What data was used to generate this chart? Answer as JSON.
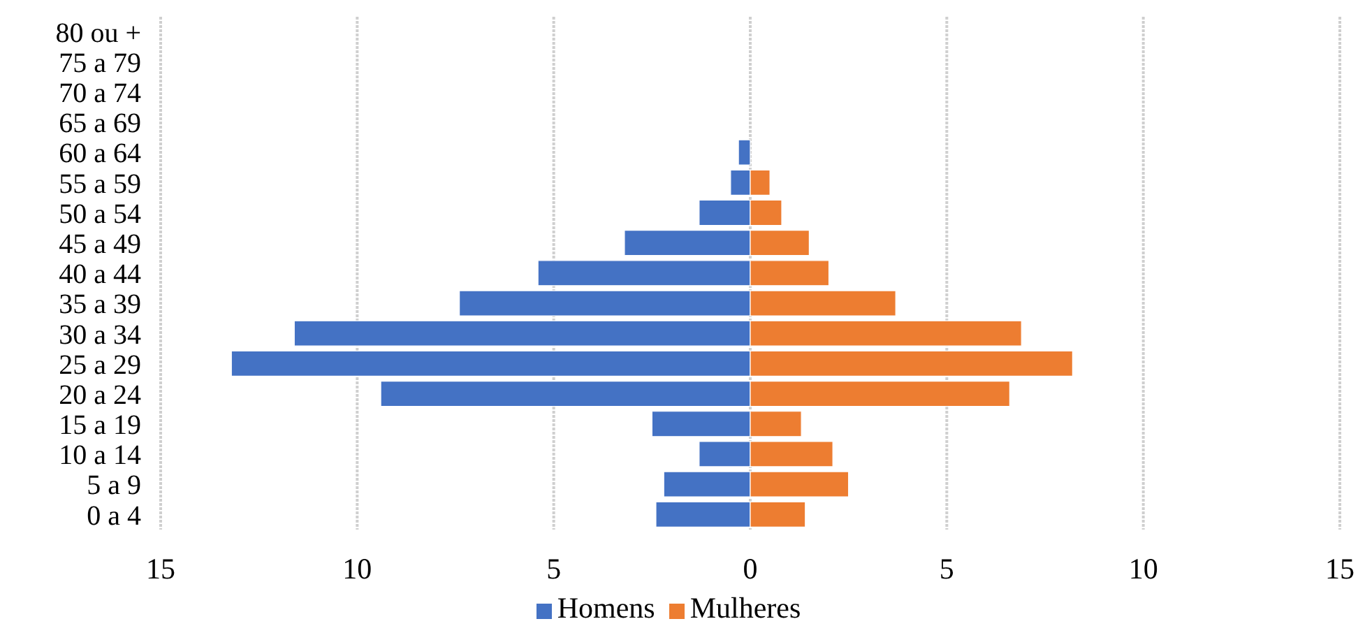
{
  "chart_data": {
    "type": "bar",
    "orientation": "horizontal",
    "stacked": true,
    "categories": [
      "80 ou +",
      "75 a 79",
      "70 a 74",
      "65 a 69",
      "60 a 64",
      "55 a 59",
      "50 a 54",
      "45 a 49",
      "40 a 44",
      "35 a 39",
      "30 a 34",
      "25 a 29",
      "20 a 24",
      "15 a 19",
      "10 a 14",
      "5 a 9",
      "0 a 4"
    ],
    "series": [
      {
        "name": "Homens",
        "color": "#4472c4",
        "values": [
          0,
          0,
          0,
          0,
          -0.3,
          -0.5,
          -1.3,
          -3.2,
          -5.4,
          -7.4,
          -11.6,
          -13.2,
          -9.4,
          -2.5,
          -1.3,
          -2.2,
          -2.4
        ]
      },
      {
        "name": "Mulheres",
        "color": "#ed7d31",
        "values": [
          0,
          0,
          0,
          0,
          0,
          0.5,
          0.8,
          1.5,
          2.0,
          3.7,
          6.9,
          8.2,
          6.6,
          1.3,
          2.1,
          2.5,
          1.4
        ]
      }
    ],
    "xlim": [
      -15,
      15
    ],
    "xticks": [
      {
        "value": -15,
        "label": "15"
      },
      {
        "value": -10,
        "label": "10"
      },
      {
        "value": -5,
        "label": "5"
      },
      0,
      5,
      10,
      15
    ],
    "grid": "x",
    "legend": "bottom"
  }
}
